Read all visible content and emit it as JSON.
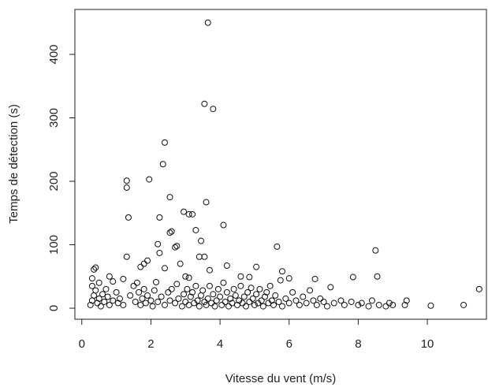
{
  "chart_data": {
    "type": "scatter",
    "x_label": "Vitesse du vent (m/s)",
    "y_label": "Temps de détection (s)",
    "color": "#111111",
    "xlim": [
      -0.2,
      11.71
    ],
    "ylim": [
      -17.4,
      470.8
    ],
    "xticks": [
      0,
      2,
      4,
      6,
      8,
      10
    ],
    "yticks": [
      0,
      100,
      200,
      300,
      400
    ],
    "x": [
      3.65,
      3.55,
      3.8,
      2.4,
      2.35,
      1.3,
      1.95,
      1.3,
      2.55,
      3.6,
      2.95,
      3.1,
      3.2,
      1.35,
      2.25,
      4.1,
      3.3,
      2.6,
      2.55,
      3.45,
      2.2,
      2.75,
      2.7,
      5.65,
      8.5,
      2.25,
      3.4,
      3.55,
      1.3,
      1.9,
      1.8,
      2.85,
      4.2,
      1.7,
      0.4,
      0.35,
      5.05,
      2.4,
      3.7,
      5.8,
      0.8,
      1.2,
      0.3,
      0.9,
      2.15,
      3.0,
      3.1,
      4.6,
      4.85,
      6.0,
      6.75,
      7.85,
      8.55,
      11.5,
      11.05,
      10.1,
      9.4,
      9.35,
      7.2,
      5.75,
      0.25,
      0.3,
      0.35,
      0.4,
      0.45,
      0.5,
      0.55,
      0.6,
      0.65,
      0.7,
      0.3,
      0.5,
      0.75,
      0.8,
      0.9,
      1.0,
      1.05,
      1.1,
      1.2,
      1.4,
      1.5,
      1.55,
      1.6,
      1.65,
      1.7,
      1.75,
      1.8,
      1.85,
      1.9,
      2.0,
      2.05,
      2.1,
      2.2,
      2.3,
      2.4,
      2.5,
      2.55,
      2.6,
      2.7,
      2.75,
      2.8,
      2.9,
      2.95,
      3.0,
      3.05,
      3.1,
      3.15,
      3.2,
      3.25,
      3.3,
      3.35,
      3.4,
      3.45,
      3.5,
      3.55,
      3.6,
      3.65,
      3.7,
      3.75,
      3.8,
      3.85,
      3.9,
      3.95,
      4.0,
      4.05,
      4.1,
      4.15,
      4.2,
      4.25,
      4.3,
      4.35,
      4.4,
      4.45,
      4.5,
      4.55,
      4.6,
      4.65,
      4.7,
      4.75,
      4.8,
      4.85,
      4.9,
      4.95,
      5.0,
      5.05,
      5.1,
      5.15,
      5.2,
      5.25,
      5.3,
      5.35,
      5.4,
      5.45,
      5.5,
      5.55,
      5.6,
      5.7,
      5.8,
      5.9,
      6.0,
      6.1,
      6.2,
      6.3,
      6.4,
      6.5,
      6.6,
      6.7,
      6.8,
      6.9,
      7.0,
      7.1,
      7.3,
      7.5,
      7.6,
      7.8,
      8.0,
      8.1,
      8.3,
      8.4,
      8.6,
      8.8,
      8.9,
      9.0
    ],
    "values": [
      450,
      322,
      314,
      261,
      227,
      201,
      203,
      190,
      175,
      167,
      152,
      148,
      148,
      143,
      143,
      131,
      123,
      121,
      119,
      106,
      101,
      98,
      96,
      97,
      91,
      87,
      81,
      81,
      81,
      75,
      70,
      70,
      67,
      65,
      64,
      61,
      65,
      63,
      60,
      58,
      50,
      46,
      47,
      42,
      41,
      50,
      48,
      50,
      49,
      47,
      46,
      49,
      50,
      30,
      5,
      4,
      12,
      5,
      33,
      44,
      5,
      12,
      20,
      28,
      8,
      15,
      3,
      22,
      10,
      30,
      35,
      40,
      18,
      5,
      12,
      25,
      8,
      15,
      5,
      20,
      35,
      10,
      40,
      25,
      5,
      15,
      30,
      8,
      20,
      12,
      3,
      28,
      10,
      18,
      5,
      25,
      12,
      30,
      8,
      38,
      15,
      3,
      22,
      10,
      30,
      5,
      18,
      25,
      8,
      35,
      12,
      3,
      20,
      28,
      10,
      5,
      15,
      35,
      8,
      22,
      3,
      12,
      30,
      18,
      5,
      40,
      10,
      25,
      3,
      15,
      8,
      30,
      20,
      5,
      12,
      35,
      8,
      18,
      3,
      25,
      10,
      32,
      15,
      5,
      22,
      8,
      30,
      12,
      3,
      18,
      25,
      8,
      35,
      12,
      5,
      20,
      10,
      3,
      15,
      8,
      25,
      12,
      5,
      18,
      8,
      28,
      12,
      5,
      15,
      10,
      3,
      8,
      12,
      5,
      10,
      5,
      8,
      3,
      12,
      5,
      3,
      8,
      5
    ]
  }
}
